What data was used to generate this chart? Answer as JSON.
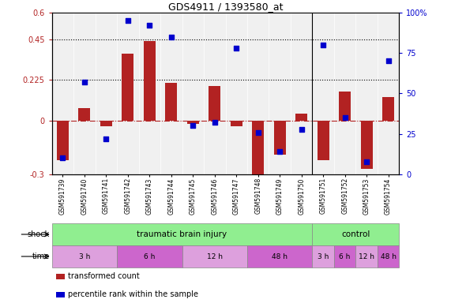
{
  "title": "GDS4911 / 1393580_at",
  "samples": [
    "GSM591739",
    "GSM591740",
    "GSM591741",
    "GSM591742",
    "GSM591743",
    "GSM591744",
    "GSM591745",
    "GSM591746",
    "GSM591747",
    "GSM591748",
    "GSM591749",
    "GSM591750",
    "GSM591751",
    "GSM591752",
    "GSM591753",
    "GSM591754"
  ],
  "transformed_count": [
    -0.22,
    0.07,
    -0.03,
    0.37,
    0.44,
    0.21,
    -0.02,
    0.19,
    -0.03,
    -0.32,
    -0.19,
    0.04,
    -0.22,
    0.16,
    -0.27,
    0.13
  ],
  "percentile_rank": [
    10,
    57,
    22,
    95,
    92,
    85,
    30,
    32,
    78,
    26,
    14,
    28,
    80,
    35,
    8,
    70
  ],
  "ylim_left": [
    -0.3,
    0.6
  ],
  "ylim_right": [
    0,
    100
  ],
  "yticks_left": [
    -0.3,
    0,
    0.225,
    0.45,
    0.6
  ],
  "yticks_right": [
    0,
    25,
    50,
    75,
    100
  ],
  "ytick_labels_left": [
    "-0.3",
    "0",
    "0.225",
    "0.45",
    "0.6"
  ],
  "ytick_labels_right": [
    "0",
    "25",
    "50",
    "75",
    "100%"
  ],
  "hlines": [
    0.225,
    0.45
  ],
  "bar_color": "#B22222",
  "dot_color": "#0000CD",
  "zero_line_color": "#B22222",
  "shock_groups": [
    {
      "label": "traumatic brain injury",
      "start": 0,
      "end": 11,
      "color": "#90EE90"
    },
    {
      "label": "control",
      "start": 12,
      "end": 15,
      "color": "#90EE90"
    }
  ],
  "time_groups": [
    {
      "label": "3 h",
      "start": 0,
      "end": 2,
      "color": "#DDA0DD"
    },
    {
      "label": "6 h",
      "start": 3,
      "end": 5,
      "color": "#CC66CC"
    },
    {
      "label": "12 h",
      "start": 6,
      "end": 8,
      "color": "#DDA0DD"
    },
    {
      "label": "48 h",
      "start": 9,
      "end": 11,
      "color": "#CC66CC"
    },
    {
      "label": "3 h",
      "start": 12,
      "end": 12,
      "color": "#DDA0DD"
    },
    {
      "label": "6 h",
      "start": 13,
      "end": 13,
      "color": "#CC66CC"
    },
    {
      "label": "12 h",
      "start": 14,
      "end": 14,
      "color": "#DDA0DD"
    },
    {
      "label": "48 h",
      "start": 15,
      "end": 15,
      "color": "#CC66CC"
    }
  ],
  "legend_items": [
    {
      "label": "transformed count",
      "color": "#B22222"
    },
    {
      "label": "percentile rank within the sample",
      "color": "#0000CD"
    }
  ]
}
